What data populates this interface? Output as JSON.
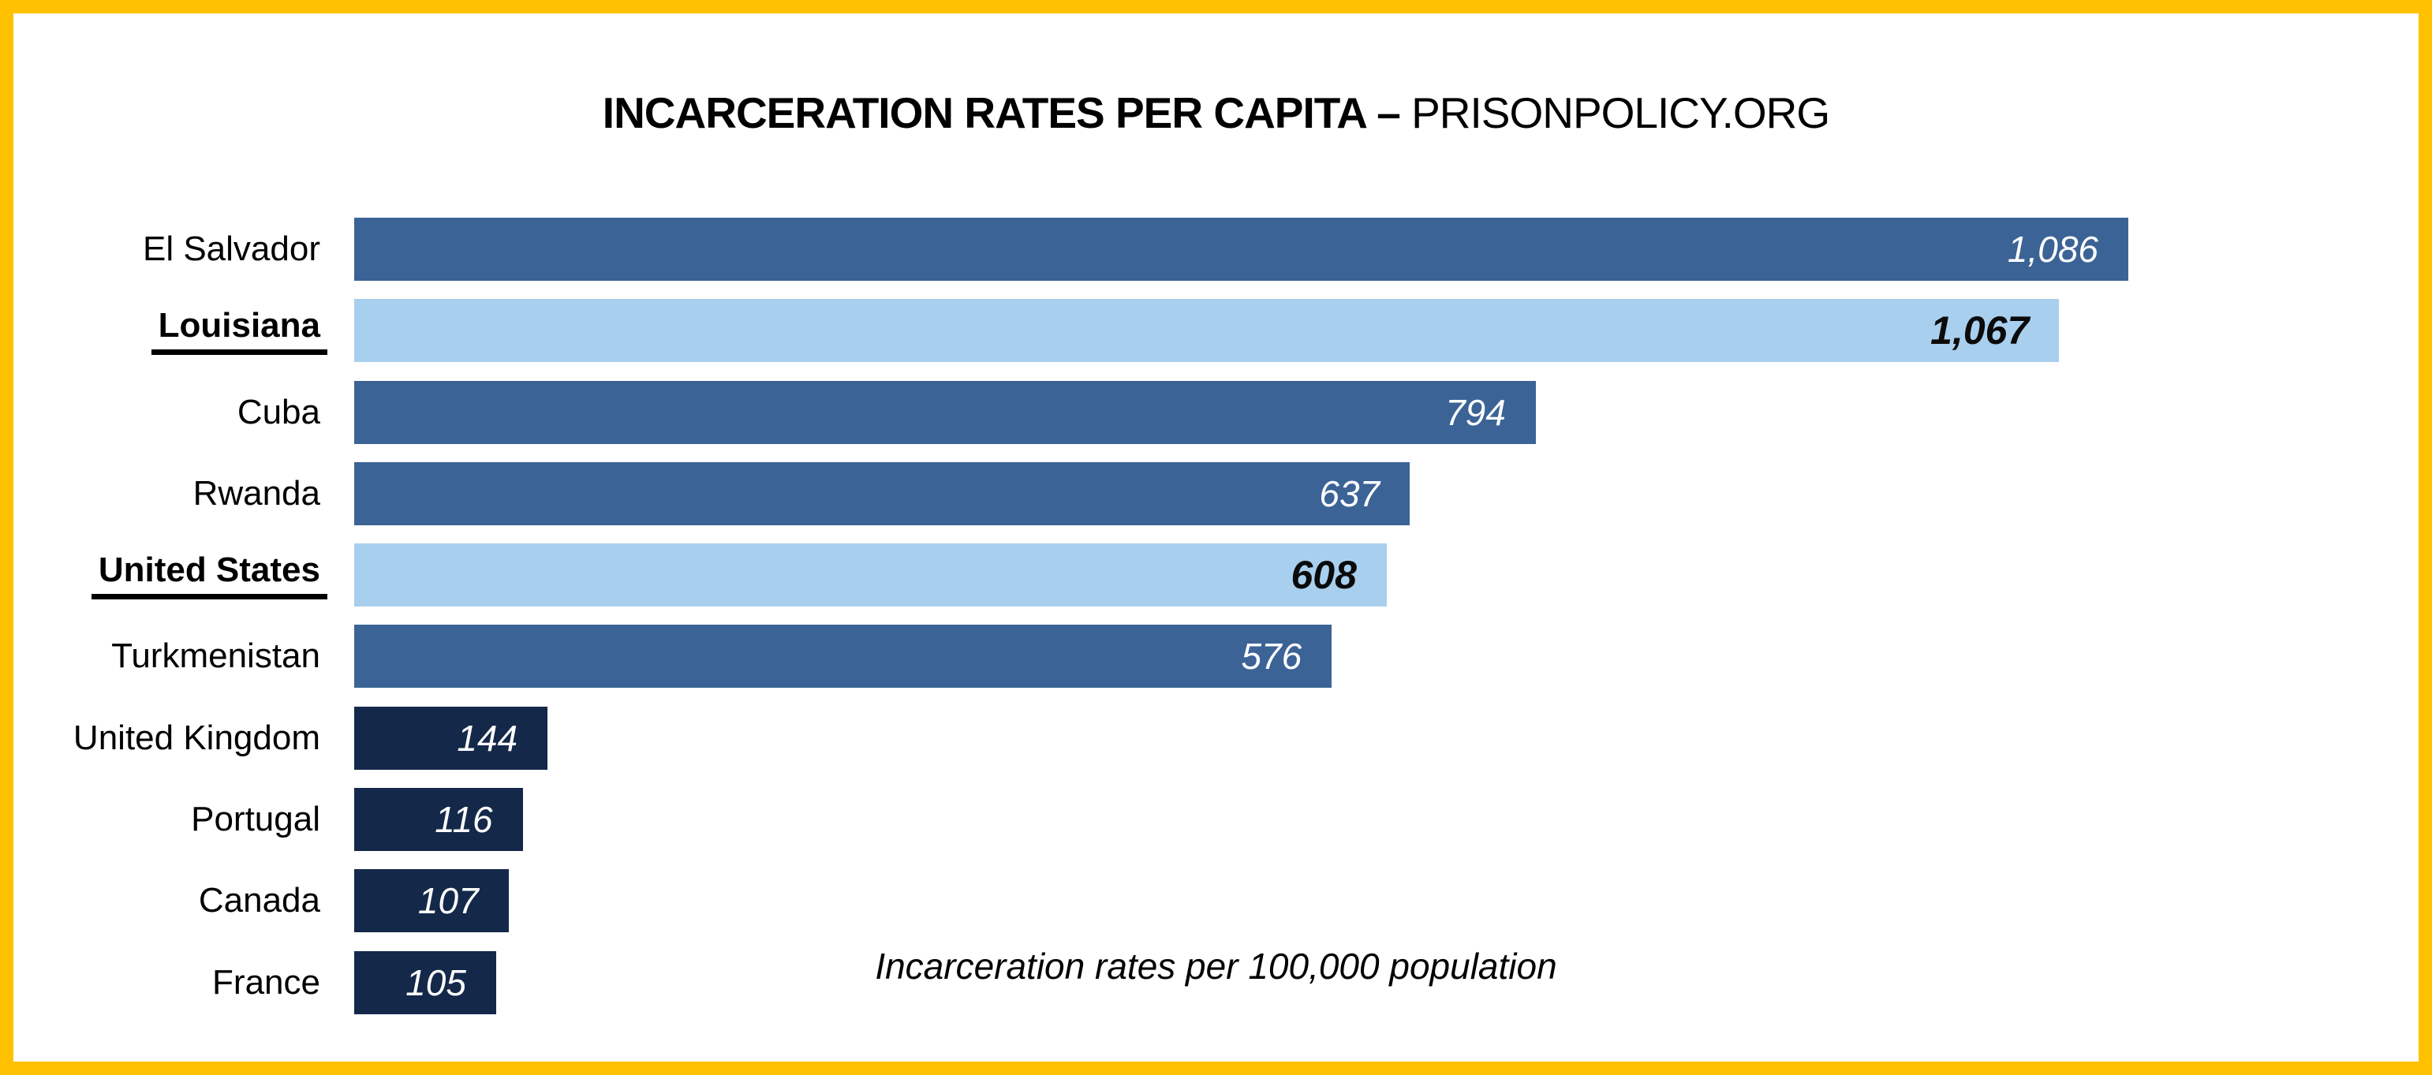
{
  "title": {
    "bold": "INCARCERATION RATES PER CAPITA – ",
    "regular": "PRISONPOLICY.ORG"
  },
  "palette": {
    "frame": "#FFC100",
    "background": "#FFFFFF",
    "bar_mid_blue": "#3B6396",
    "bar_highlight_light_blue": "#A9CFEE",
    "bar_dark_navy": "#14284A",
    "value_text_on_dark": "#FFFFFF",
    "value_text_on_highlight": "#0B0B0B",
    "label_text": "#000000"
  },
  "chart_data": {
    "type": "bar",
    "orientation": "horizontal",
    "title": "INCARCERATION RATES PER CAPITA – PRISONPOLICY.ORG",
    "caption": "Incarceration rates per 100,000 population",
    "xlabel": "Incarceration rate per 100,000 population",
    "ylabel": "",
    "xlim": [
      0,
      1086
    ],
    "grid": false,
    "legend": false,
    "highlighted_categories": [
      "Louisiana",
      "United States"
    ],
    "categories": [
      "El Salvador",
      "Louisiana",
      "Cuba",
      "Rwanda",
      "United States",
      "Turkmenistan",
      "United Kingdom",
      "Portugal",
      "Canada",
      "France"
    ],
    "values": [
      1086,
      1067,
      794,
      637,
      608,
      576,
      144,
      116,
      107,
      105
    ],
    "value_labels": [
      "1,086",
      "1,067",
      "794",
      "637",
      "608",
      "576",
      "144",
      "116",
      "107",
      "105"
    ],
    "rows": [
      {
        "label": "El Salvador",
        "value": 1086,
        "display": "1,086",
        "tier": "mid",
        "width_pct": 100.0
      },
      {
        "label": "Louisiana",
        "value": 1067,
        "display": "1,067",
        "tier": "highlight",
        "width_pct": 96.1
      },
      {
        "label": "Cuba",
        "value": 794,
        "display": "794",
        "tier": "mid",
        "width_pct": 66.6
      },
      {
        "label": "Rwanda",
        "value": 637,
        "display": "637",
        "tier": "mid",
        "width_pct": 59.5
      },
      {
        "label": "United States",
        "value": 608,
        "display": "608",
        "tier": "highlight",
        "width_pct": 58.2
      },
      {
        "label": "Turkmenistan",
        "value": 576,
        "display": "576",
        "tier": "mid",
        "width_pct": 55.1
      },
      {
        "label": "United Kingdom",
        "value": 144,
        "display": "144",
        "tier": "dark",
        "width_pct": 10.9
      },
      {
        "label": "Portugal",
        "value": 116,
        "display": "116",
        "tier": "dark",
        "width_pct": 9.5
      },
      {
        "label": "Canada",
        "value": 107,
        "display": "107",
        "tier": "dark",
        "width_pct": 8.7
      },
      {
        "label": "France",
        "value": 105,
        "display": "105",
        "tier": "dark",
        "width_pct": 8.0
      }
    ]
  }
}
